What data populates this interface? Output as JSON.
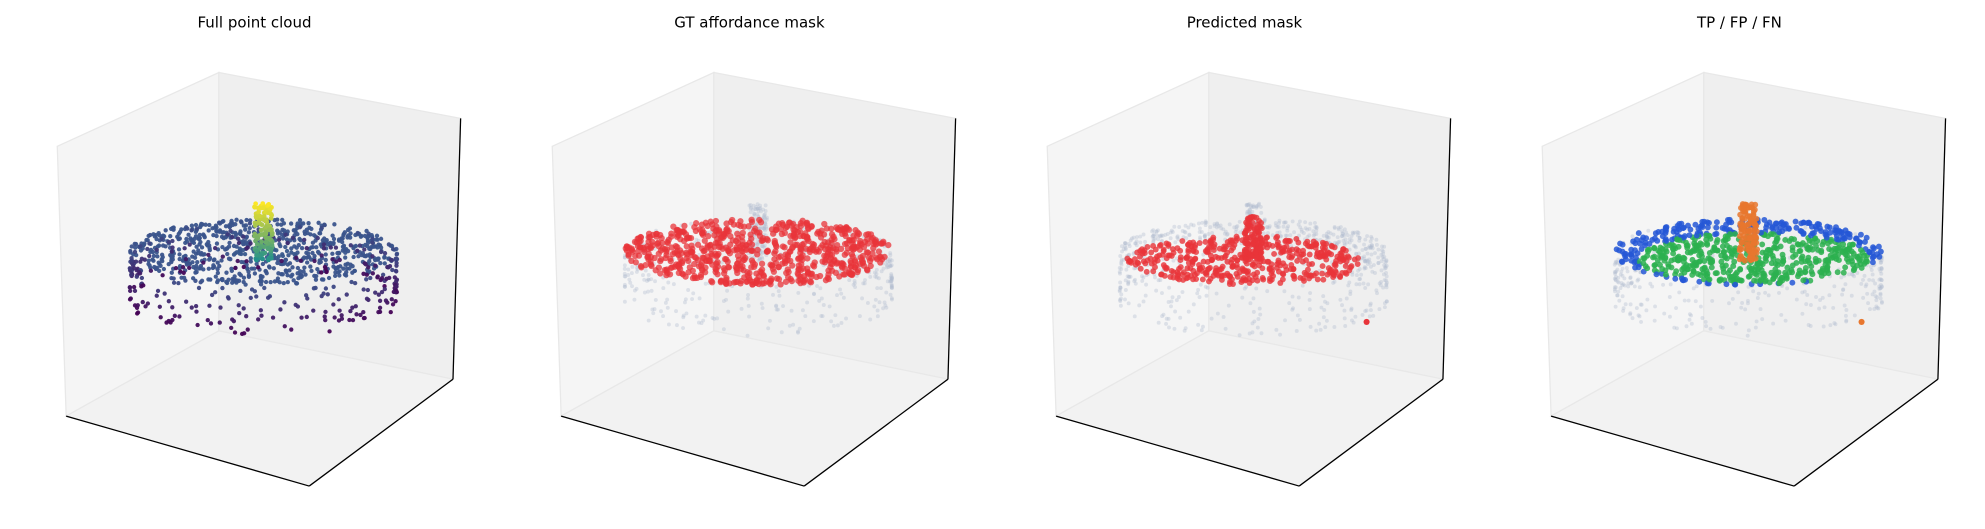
{
  "panels": [
    {
      "title": "Full point cloud"
    },
    {
      "title": "GT affordance mask"
    },
    {
      "title": "Predicted mask"
    },
    {
      "title": "TP / FP / FN"
    }
  ]
}
